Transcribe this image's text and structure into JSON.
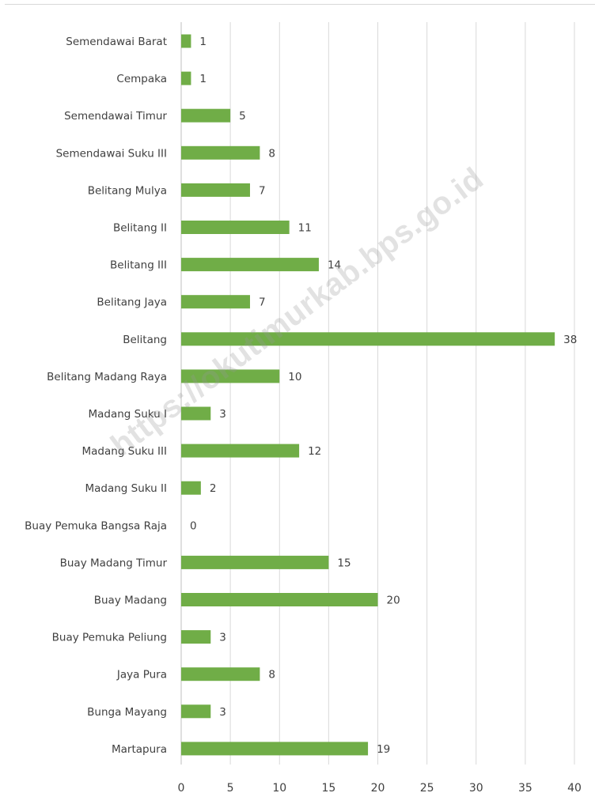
{
  "chart_data": {
    "type": "bar",
    "orientation": "horizontal",
    "categories": [
      "Semendawai Barat",
      "Cempaka",
      "Semendawai Timur",
      "Semendawai Suku III",
      "Belitang Mulya",
      "Belitang II",
      "Belitang III",
      "Belitang Jaya",
      "Belitang",
      "Belitang Madang Raya",
      "Madang Suku I",
      "Madang Suku III",
      "Madang Suku II",
      "Buay Pemuka Bangsa Raja",
      "Buay Madang Timur",
      "Buay Madang",
      "Buay Pemuka Peliung",
      "Jaya Pura",
      "Bunga Mayang",
      "Martapura"
    ],
    "values": [
      1,
      1,
      5,
      8,
      7,
      11,
      14,
      7,
      38,
      10,
      3,
      12,
      2,
      0,
      15,
      20,
      3,
      8,
      3,
      19
    ],
    "xlim": [
      0,
      40
    ],
    "xticks": [
      0,
      5,
      10,
      15,
      20,
      25,
      30,
      35,
      40
    ],
    "data_labels": true,
    "grid": "vertical",
    "title": "",
    "xlabel": "",
    "ylabel": ""
  },
  "colors": {
    "bar": "#70ad47",
    "grid": "#d9d9d9",
    "text": "#404040"
  },
  "watermark": "https://okutimurkab.bps.go.id"
}
